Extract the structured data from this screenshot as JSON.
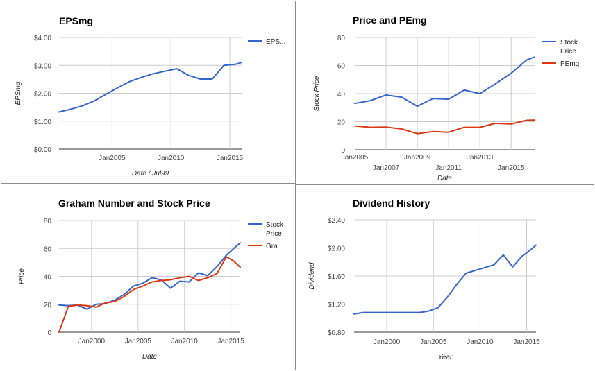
{
  "colors": {
    "blue": "#3366cc",
    "red": "#dc3912",
    "grid": "#cccccc",
    "baseline": "#333333"
  },
  "chart_data": [
    {
      "type": "line",
      "title": "EPSmg",
      "xlabel": "Date / Jul99",
      "ylabel": "EPSmg",
      "x_ticks": [
        "Jan2005",
        "Jan2010",
        "Jan2015"
      ],
      "x_tick_years": [
        2005,
        2010,
        2015
      ],
      "xlim": [
        2000.5,
        2016.0
      ],
      "y_ticks": [
        "$0.00",
        "$1.00",
        "$2.00",
        "$3.00",
        "$4.00"
      ],
      "y_tick_values": [
        0,
        1,
        2,
        3,
        4
      ],
      "ylim": [
        0,
        4
      ],
      "grid": true,
      "legend_position": "right",
      "series": [
        {
          "name": "EPS...",
          "color": "#3366cc",
          "x": [
            2000.5,
            2001.5,
            2002.5,
            2003.5,
            2004.5,
            2005.5,
            2006.5,
            2007.5,
            2008.5,
            2009.5,
            2010.5,
            2011.5,
            2012.5,
            2013.5,
            2014.5,
            2015.5,
            2016.0
          ],
          "values": [
            1.33,
            1.43,
            1.55,
            1.73,
            1.97,
            2.2,
            2.42,
            2.57,
            2.7,
            2.79,
            2.88,
            2.64,
            2.51,
            2.51,
            3.0,
            3.04,
            3.1
          ]
        }
      ]
    },
    {
      "type": "line",
      "title": "Price and PEmg",
      "xlabel": "Date",
      "ylabel": "Stock Price",
      "x_ticks": [
        "Jan2005",
        "Jan2007",
        "Jan2009",
        "Jan2011",
        "Jan2013",
        "Jan2015"
      ],
      "x_tick_years": [
        2005,
        2007,
        2009,
        2011,
        2013,
        2015
      ],
      "xlim": [
        2005,
        2016.5
      ],
      "y_ticks": [
        "0",
        "20",
        "40",
        "60",
        "80"
      ],
      "y_tick_values": [
        0,
        20,
        40,
        60,
        80
      ],
      "ylim": [
        0,
        80
      ],
      "grid": true,
      "legend_position": "right",
      "series": [
        {
          "name": "Stock Price",
          "color": "#3366cc",
          "x": [
            2005,
            2006,
            2007,
            2008,
            2009,
            2010,
            2011,
            2012,
            2013,
            2014,
            2015,
            2016,
            2016.5
          ],
          "values": [
            33,
            35,
            39,
            37.5,
            31,
            36.5,
            36,
            42.5,
            40,
            47,
            54.5,
            64,
            66
          ]
        },
        {
          "name": "PEmg",
          "color": "#dc3912",
          "x": [
            2005,
            2006,
            2007,
            2008,
            2009,
            2010,
            2011,
            2012,
            2013,
            2014,
            2015,
            2016,
            2016.5
          ],
          "values": [
            17,
            16,
            16.2,
            14.8,
            11.5,
            13,
            12.5,
            16,
            16,
            18.8,
            18.3,
            21,
            21.2
          ]
        }
      ]
    },
    {
      "type": "line",
      "title": "Graham Number and Stock Price",
      "xlabel": "Date",
      "ylabel": "Price",
      "x_ticks": [
        "Jan2000",
        "Jan2005",
        "Jan2010",
        "Jan2015"
      ],
      "x_tick_years": [
        2000,
        2005,
        2010,
        2015
      ],
      "xlim": [
        1996.5,
        2016.0
      ],
      "y_ticks": [
        "0",
        "20",
        "40",
        "60",
        "80"
      ],
      "y_tick_values": [
        0,
        20,
        40,
        60,
        80
      ],
      "ylim": [
        0,
        80
      ],
      "grid": true,
      "legend_position": "right",
      "series": [
        {
          "name": "Stock Price",
          "color": "#3366cc",
          "x": [
            1996.5,
            1997.5,
            1998.5,
            1999.5,
            2000.5,
            2001.5,
            2002.5,
            2003.5,
            2004.5,
            2005.5,
            2006.5,
            2007.5,
            2008.5,
            2009.5,
            2010.5,
            2011.5,
            2012.5,
            2013.5,
            2014.5,
            2015.3,
            2016.0
          ],
          "values": [
            19.5,
            19,
            19.5,
            16.5,
            20,
            20.5,
            23,
            27,
            33,
            35,
            39,
            37.5,
            31.5,
            36.5,
            36,
            42.5,
            40.5,
            47,
            55,
            60,
            64
          ]
        },
        {
          "name": "Gra...",
          "color": "#dc3912",
          "x": [
            1996.5,
            1997.5,
            1998.5,
            1999.5,
            2000.5,
            2001.5,
            2002.5,
            2003.5,
            2004.5,
            2005.5,
            2006.5,
            2007.5,
            2008.5,
            2009.5,
            2010.5,
            2011.5,
            2012.5,
            2013.5,
            2014.5,
            2015.3,
            2016.0
          ],
          "values": [
            0,
            18.5,
            19.5,
            19,
            18,
            21,
            22,
            25.5,
            30.5,
            33,
            36,
            37,
            37.5,
            39,
            40,
            37,
            39,
            42,
            54,
            51,
            46.5
          ]
        }
      ]
    },
    {
      "type": "line",
      "title": "Dividend History",
      "xlabel": "Year",
      "ylabel": "Dividend",
      "x_ticks": [
        "Jan2000",
        "Jan2005",
        "Jan2010",
        "Jan2015"
      ],
      "x_tick_years": [
        2000,
        2005,
        2010,
        2015
      ],
      "xlim": [
        1996.5,
        2016.0
      ],
      "y_ticks": [
        "$0.80",
        "$1.20",
        "$1.60",
        "$2.00",
        "$2.40"
      ],
      "y_tick_values": [
        0.8,
        1.2,
        1.6,
        2.0,
        2.4
      ],
      "ylim": [
        0.8,
        2.4
      ],
      "grid": true,
      "legend_position": "none",
      "series": [
        {
          "name": "",
          "color": "#3366cc",
          "x": [
            1996.5,
            1997.5,
            1998.5,
            1999.5,
            2000.5,
            2001.5,
            2002.5,
            2003.5,
            2004.5,
            2005.5,
            2006.5,
            2007.5,
            2008.5,
            2009.5,
            2010.5,
            2011.5,
            2012.5,
            2013.5,
            2014.5,
            2015.3,
            2016.0
          ],
          "values": [
            1.06,
            1.08,
            1.08,
            1.08,
            1.08,
            1.08,
            1.08,
            1.08,
            1.1,
            1.15,
            1.3,
            1.48,
            1.64,
            1.68,
            1.72,
            1.76,
            1.9,
            1.73,
            1.88,
            1.96,
            2.04
          ]
        }
      ]
    }
  ]
}
